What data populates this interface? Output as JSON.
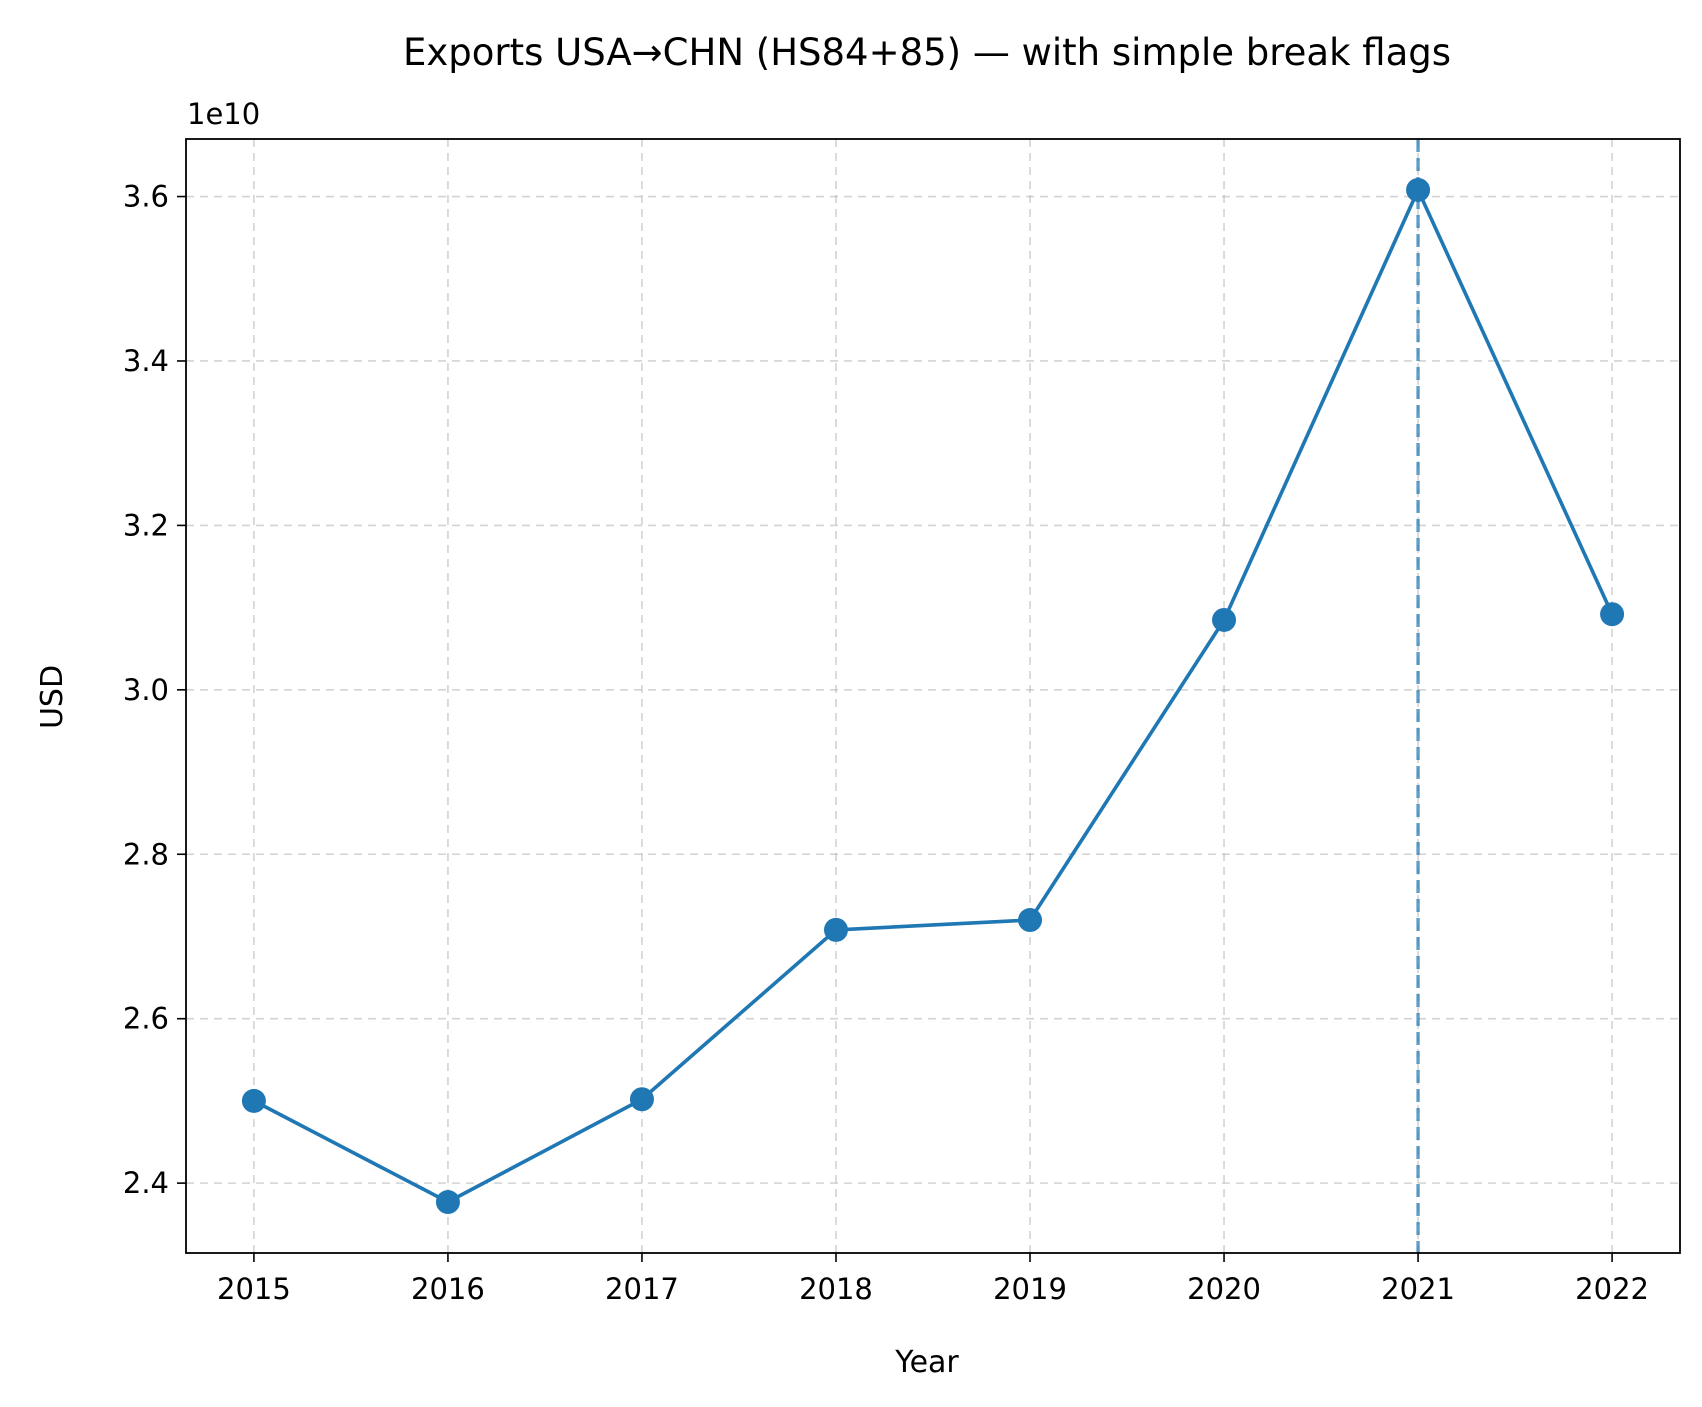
{
  "chart_data": {
    "type": "line",
    "title": "Exports USA→CHN (HS84+85) — with simple break flags",
    "xlabel": "Year",
    "ylabel": "USD",
    "y_offset_label": "1e10",
    "x": [
      2015,
      2016,
      2017,
      2018,
      2019,
      2020,
      2021,
      2022
    ],
    "x_tick_labels": [
      "2015",
      "2016",
      "2017",
      "2018",
      "2019",
      "2020",
      "2021",
      "2022"
    ],
    "y_ticks": [
      2.4,
      2.6,
      2.8,
      3.0,
      3.2,
      3.4,
      3.6
    ],
    "y_tick_labels": [
      "2.4",
      "2.6",
      "2.8",
      "3.0",
      "3.2",
      "3.4",
      "3.6"
    ],
    "series": [
      {
        "values": [
          25000000000,
          23770000000,
          25020000000,
          27080000000,
          27200000000,
          30850000000,
          36080000000,
          30920000000
        ],
        "color": "#1f77b4",
        "marker": "circle"
      }
    ],
    "break_flags": [
      2021
    ],
    "break_flag_color": "#1f77b4",
    "xlim": [
      2014.65,
      2022.35
    ],
    "ylim": [
      2.315,
      3.67
    ],
    "y_scale": 10000000000,
    "grid": true
  }
}
